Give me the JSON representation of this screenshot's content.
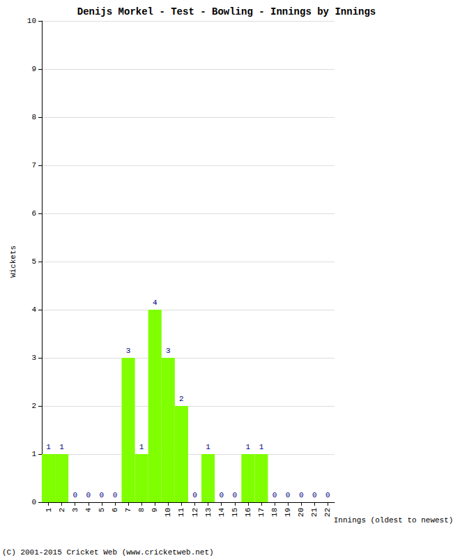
{
  "chart_data": {
    "type": "bar",
    "title": "Denijs Morkel - Test - Bowling - Innings by Innings",
    "x_label": "Innings (oldest to newest)",
    "y_label": "Wickets",
    "footer": "(C) 2001-2015 Cricket Web (www.cricketweb.net)",
    "categories": [
      "1",
      "2",
      "3",
      "4",
      "5",
      "6",
      "7",
      "8",
      "9",
      "10",
      "11",
      "12",
      "13",
      "14",
      "15",
      "16",
      "17",
      "18",
      "19",
      "20",
      "21",
      "22"
    ],
    "values": [
      1,
      1,
      0,
      0,
      0,
      0,
      3,
      1,
      4,
      3,
      2,
      0,
      1,
      0,
      0,
      1,
      1,
      0,
      0,
      0,
      0,
      0
    ],
    "color": "#80ff00",
    "ylim": [
      0,
      10
    ],
    "yticks": [
      0,
      1,
      2,
      3,
      4,
      5,
      6,
      7,
      8,
      9,
      10
    ],
    "grid": true,
    "data_labels": true
  }
}
